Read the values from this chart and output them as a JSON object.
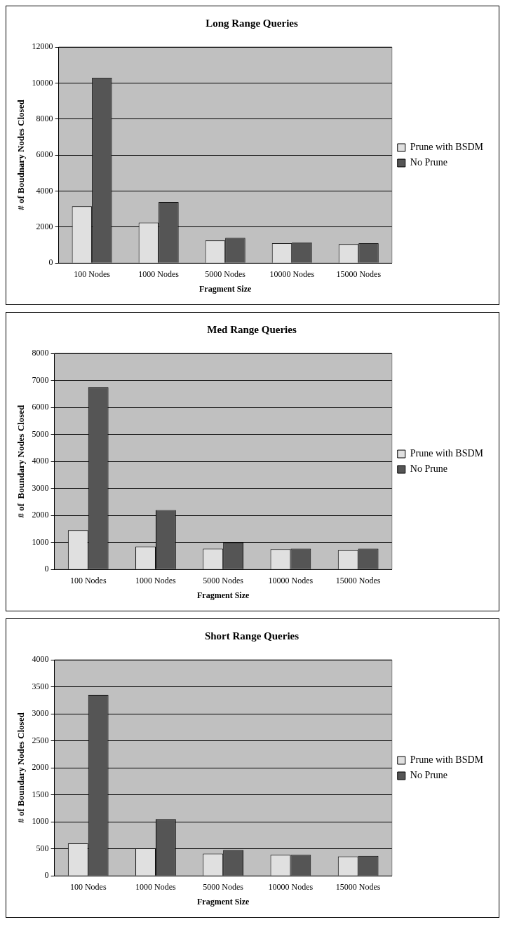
{
  "chart_data": [
    {
      "type": "bar",
      "title": "Long Range Queries",
      "xlabel": "Fragment Size",
      "ylabel": "# of Boudnary Nodes Closed",
      "categories": [
        "100 Nodes",
        "1000 Nodes",
        "5000 Nodes",
        "10000 Nodes",
        "15000 Nodes"
      ],
      "series": [
        {
          "name": "Prune with BSDM",
          "color": "#e0e0e0",
          "values": [
            3150,
            2250,
            1250,
            1100,
            1050
          ]
        },
        {
          "name": "No Prune",
          "color": "#555555",
          "values": [
            10300,
            3400,
            1400,
            1150,
            1100
          ]
        }
      ],
      "ylim": [
        0,
        12000
      ],
      "yticks": [
        0,
        2000,
        4000,
        6000,
        8000,
        10000,
        12000
      ],
      "grid": "y",
      "legend": "right"
    },
    {
      "type": "bar",
      "title": "Med Range Queries",
      "xlabel": "Fragment Size",
      "ylabel": "# of  Boundary Nodes Closed",
      "categories": [
        "100 Nodes",
        "1000 Nodes",
        "5000 Nodes",
        "10000 Nodes",
        "15000 Nodes"
      ],
      "series": [
        {
          "name": "Prune with BSDM",
          "color": "#e0e0e0",
          "values": [
            1450,
            850,
            770,
            750,
            710
          ]
        },
        {
          "name": "No Prune",
          "color": "#555555",
          "values": [
            6750,
            2200,
            1000,
            770,
            770
          ]
        }
      ],
      "ylim": [
        0,
        8000
      ],
      "yticks": [
        0,
        1000,
        2000,
        3000,
        4000,
        5000,
        6000,
        7000,
        8000
      ],
      "grid": "y",
      "legend": "right"
    },
    {
      "type": "bar",
      "title": "Short Range Queries",
      "xlabel": "Fragment Size",
      "ylabel": "# of Boundary Nodes Closed",
      "categories": [
        "100 Nodes",
        "1000 Nodes",
        "5000 Nodes",
        "10000 Nodes",
        "15000 Nodes"
      ],
      "series": [
        {
          "name": "Prune with BSDM",
          "color": "#e0e0e0",
          "values": [
            600,
            510,
            410,
            390,
            360
          ]
        },
        {
          "name": "No Prune",
          "color": "#555555",
          "values": [
            3350,
            1050,
            480,
            390,
            370
          ]
        }
      ],
      "ylim": [
        0,
        4000
      ],
      "yticks": [
        0,
        500,
        1000,
        1500,
        2000,
        2500,
        3000,
        3500,
        4000
      ],
      "grid": "y",
      "legend": "right"
    }
  ]
}
